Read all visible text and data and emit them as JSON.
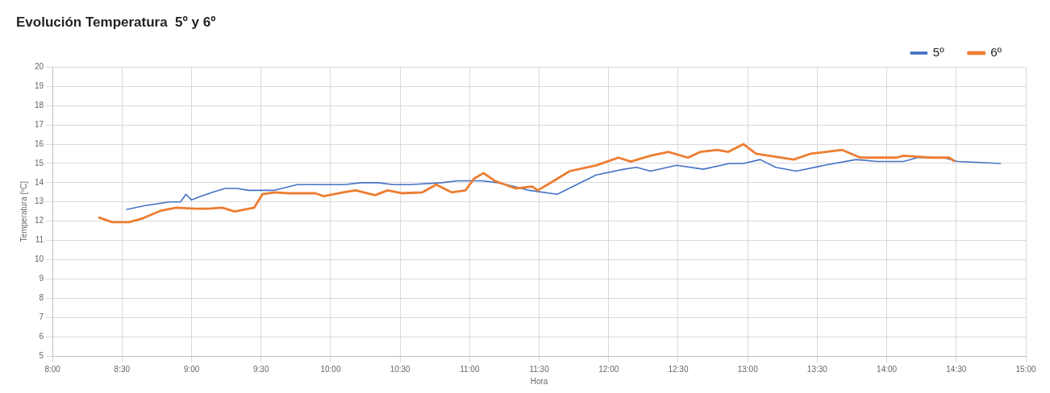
{
  "chart_data": {
    "type": "line",
    "title": "Evolución Temperatura  5º y 6º",
    "xlabel": "Hora",
    "ylabel": "Temperatura [ºC]",
    "xlim": [
      8,
      15
    ],
    "xticks": [
      {
        "value": 8,
        "label": "8:00"
      },
      {
        "value": 8.5,
        "label": "8:30"
      },
      {
        "value": 9,
        "label": "9:00"
      },
      {
        "value": 9.5,
        "label": "9:30"
      },
      {
        "value": 10,
        "label": "10:00"
      },
      {
        "value": 10.5,
        "label": "10:30"
      },
      {
        "value": 11,
        "label": "11:00"
      },
      {
        "value": 11.5,
        "label": "11:30"
      },
      {
        "value": 12,
        "label": "12:00"
      },
      {
        "value": 12.5,
        "label": "12:30"
      },
      {
        "value": 13,
        "label": "13:00"
      },
      {
        "value": 13.5,
        "label": "13:30"
      },
      {
        "value": 14,
        "label": "14:00"
      },
      {
        "value": 14.5,
        "label": "14:30"
      },
      {
        "value": 15,
        "label": "15:00"
      }
    ],
    "ylim": [
      5,
      20
    ],
    "yticks": [
      5,
      6,
      7,
      8,
      9,
      10,
      11,
      12,
      13,
      14,
      15,
      16,
      17,
      18,
      19,
      20
    ],
    "grid": true,
    "legend": "top right",
    "marker": "none",
    "line_style": "solid",
    "series": [
      {
        "name": "5º",
        "color": "#4472c4",
        "x": [
          8.53,
          8.66,
          8.84,
          8.92,
          8.96,
          9.0,
          9.07,
          9.15,
          9.24,
          9.33,
          9.41,
          9.59,
          9.76,
          9.99,
          10.1,
          10.22,
          10.34,
          10.45,
          10.57,
          10.8,
          10.91,
          11.09,
          11.2,
          11.32,
          11.43,
          11.63,
          11.91,
          12.11,
          12.2,
          12.3,
          12.49,
          12.68,
          12.87,
          12.97,
          13.09,
          13.2,
          13.35,
          13.55,
          13.78,
          13.93,
          14.12,
          14.22,
          14.41,
          14.51,
          14.82
        ],
        "values": [
          12.6,
          12.8,
          13.0,
          13.0,
          13.4,
          13.1,
          13.3,
          13.5,
          13.7,
          13.7,
          13.6,
          13.6,
          13.9,
          13.9,
          13.9,
          14.0,
          14.0,
          13.9,
          13.9,
          14.0,
          14.1,
          14.1,
          14.0,
          13.8,
          13.6,
          13.4,
          14.4,
          14.7,
          14.8,
          14.6,
          14.9,
          14.7,
          15.0,
          15.0,
          15.2,
          14.8,
          14.6,
          14.9,
          15.2,
          15.1,
          15.1,
          15.3,
          15.3,
          15.1,
          15.0
        ]
      },
      {
        "name": "6º",
        "color": "#ed7d31",
        "x": [
          8.33,
          8.43,
          8.55,
          8.65,
          8.78,
          8.89,
          9.03,
          9.12,
          9.22,
          9.31,
          9.45,
          9.51,
          9.6,
          9.7,
          9.89,
          9.95,
          10.09,
          10.18,
          10.32,
          10.41,
          10.51,
          10.66,
          10.76,
          10.87,
          10.97,
          11.03,
          11.1,
          11.18,
          11.33,
          11.45,
          11.49,
          11.56,
          11.72,
          11.91,
          12.07,
          12.16,
          12.3,
          12.43,
          12.57,
          12.66,
          12.78,
          12.86,
          12.97,
          13.06,
          13.33,
          13.45,
          13.68,
          13.81,
          13.93,
          14.07,
          14.12,
          14.32,
          14.45,
          14.49
        ],
        "values": [
          12.2,
          11.95,
          11.95,
          12.15,
          12.55,
          12.7,
          12.65,
          12.65,
          12.7,
          12.5,
          12.7,
          13.4,
          13.5,
          13.45,
          13.45,
          13.3,
          13.5,
          13.6,
          13.35,
          13.6,
          13.45,
          13.5,
          13.9,
          13.5,
          13.6,
          14.2,
          14.5,
          14.1,
          13.7,
          13.8,
          13.6,
          13.9,
          14.6,
          14.9,
          15.3,
          15.1,
          15.4,
          15.6,
          15.3,
          15.6,
          15.7,
          15.6,
          16.0,
          15.5,
          15.2,
          15.5,
          15.7,
          15.3,
          15.3,
          15.3,
          15.4,
          15.3,
          15.3,
          15.1
        ]
      }
    ]
  }
}
